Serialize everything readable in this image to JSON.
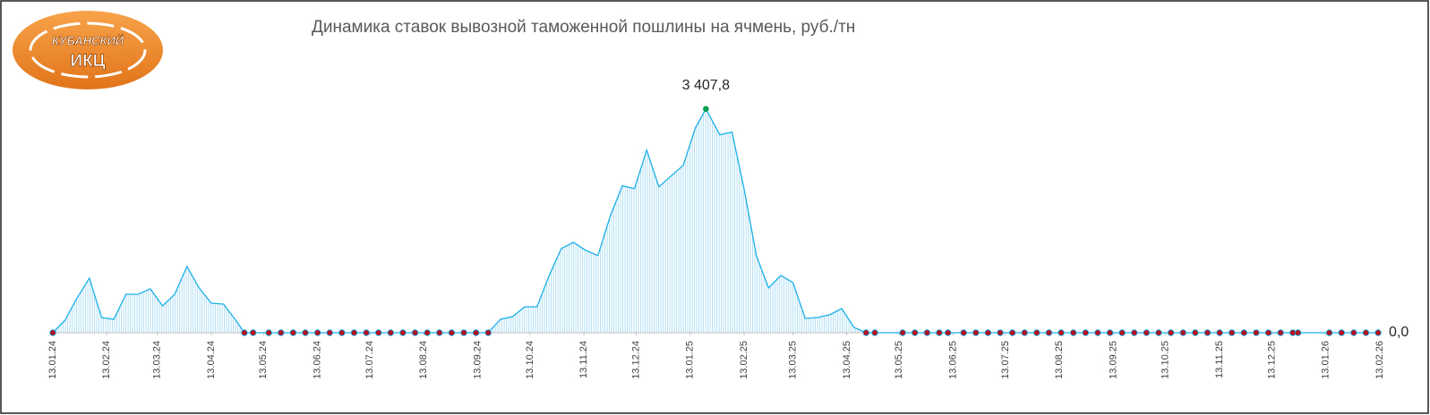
{
  "logo": {
    "line1": "КУБАНСКИЙ",
    "line2": "ИКЦ"
  },
  "chart_data": {
    "type": "area",
    "title": "Динамика ставок вывозной таможенной пошлины на ячмень, руб./тн",
    "x": [
      0,
      7,
      14,
      21,
      28,
      35,
      42,
      49,
      56,
      63,
      70,
      77,
      84,
      91,
      98,
      105,
      110,
      115,
      124,
      131,
      138,
      145,
      152,
      159,
      166,
      173,
      180,
      187,
      194,
      201,
      208,
      215,
      222,
      229,
      236,
      243,
      250,
      257,
      264,
      271,
      278,
      285,
      292,
      299,
      306,
      313,
      320,
      327,
      334,
      341,
      348,
      355,
      362,
      369,
      375,
      383,
      390,
      397,
      404,
      411,
      418,
      425,
      432,
      439,
      446,
      453,
      460,
      467,
      472,
      488,
      495,
      502,
      509,
      514,
      523,
      530,
      537,
      544,
      551,
      558,
      565,
      572,
      579,
      586,
      593,
      600,
      607,
      614,
      621,
      628,
      635,
      642,
      649,
      656,
      663,
      670,
      677,
      684,
      691,
      698,
      705,
      712,
      715,
      733,
      740,
      747,
      754,
      761
    ],
    "values": [
      0,
      191,
      532,
      831,
      232,
      204,
      586,
      586,
      668,
      409,
      586,
      1009,
      682,
      450,
      436,
      191,
      0,
      0,
      0,
      0,
      0,
      0,
      0,
      0,
      0,
      0,
      0,
      0,
      0,
      0,
      0,
      0,
      0,
      0,
      0,
      0,
      0,
      204,
      245,
      395,
      395,
      872,
      1281,
      1377,
      1254,
      1172,
      1772,
      2236,
      2195,
      2781,
      2222,
      2386,
      2549,
      3122,
      3407.8,
      3013,
      3054,
      2181,
      1172,
      682,
      872,
      763,
      218,
      232,
      273,
      368,
      82,
      0,
      0,
      0,
      0,
      0,
      0,
      0,
      0,
      0,
      0,
      0,
      0,
      0,
      0,
      0,
      0,
      0,
      0,
      0,
      0,
      0,
      0,
      0,
      0,
      0,
      0,
      0,
      0,
      0,
      0,
      0,
      0,
      0,
      0,
      0,
      0,
      0,
      0,
      0,
      0,
      0
    ],
    "value_labels": [
      null,
      null,
      null,
      null,
      null,
      null,
      null,
      null,
      null,
      null,
      null,
      null,
      null,
      null,
      null,
      null,
      null,
      null,
      null,
      null,
      null,
      null,
      null,
      null,
      null,
      null,
      null,
      null,
      null,
      null,
      null,
      null,
      null,
      null,
      null,
      null,
      null,
      null,
      null,
      null,
      null,
      null,
      null,
      null,
      null,
      null,
      null,
      null,
      null,
      null,
      null,
      null,
      null,
      null,
      "3 407,8",
      null,
      null,
      null,
      null,
      null,
      null,
      null,
      null,
      null,
      null,
      null,
      null,
      null,
      null,
      null,
      null,
      null,
      null,
      null,
      null,
      null,
      null,
      null,
      null,
      null,
      null,
      null,
      null,
      null,
      null,
      null,
      null,
      null,
      null,
      null,
      null,
      null,
      null,
      null,
      null,
      null,
      null,
      null,
      null,
      null,
      null,
      null,
      null,
      null,
      null,
      null,
      null,
      "0,0"
    ],
    "color": "#1ab0e8",
    "fill_color": "#a9dcf3",
    "zero_marker_color": "#b01020",
    "peak_marker_color": "#00a050",
    "xlim": [
      0,
      762
    ],
    "xticks": [
      {
        "value": 0,
        "label": "13.01.24"
      },
      {
        "value": 31,
        "label": "13.02.24"
      },
      {
        "value": 60,
        "label": "13.03.24"
      },
      {
        "value": 91,
        "label": "13.04.24"
      },
      {
        "value": 121,
        "label": "13.05.24"
      },
      {
        "value": 152,
        "label": "13.06.24"
      },
      {
        "value": 182,
        "label": "13.07.24"
      },
      {
        "value": 213,
        "label": "13.08.24"
      },
      {
        "value": 244,
        "label": "13.09.24"
      },
      {
        "value": 274,
        "label": "13.10.24"
      },
      {
        "value": 305,
        "label": "13.11.24"
      },
      {
        "value": 335,
        "label": "13.12.24"
      },
      {
        "value": 366,
        "label": "13.01.25"
      },
      {
        "value": 397,
        "label": "13.02.25"
      },
      {
        "value": 425,
        "label": "13.03.25"
      },
      {
        "value": 456,
        "label": "13.04.25"
      },
      {
        "value": 486,
        "label": "13.05.25"
      },
      {
        "value": 517,
        "label": "13.06.25"
      },
      {
        "value": 547,
        "label": "13.07.25"
      },
      {
        "value": 578,
        "label": "13.08.25"
      },
      {
        "value": 609,
        "label": "13.09.25"
      },
      {
        "value": 639,
        "label": "13.10.25"
      },
      {
        "value": 670,
        "label": "13.11.25"
      },
      {
        "value": 700,
        "label": "13.12.25"
      },
      {
        "value": 731,
        "label": "13.01.26"
      },
      {
        "value": 762,
        "label": "13.02.26"
      }
    ],
    "ylim": [
      0,
      3500
    ]
  }
}
